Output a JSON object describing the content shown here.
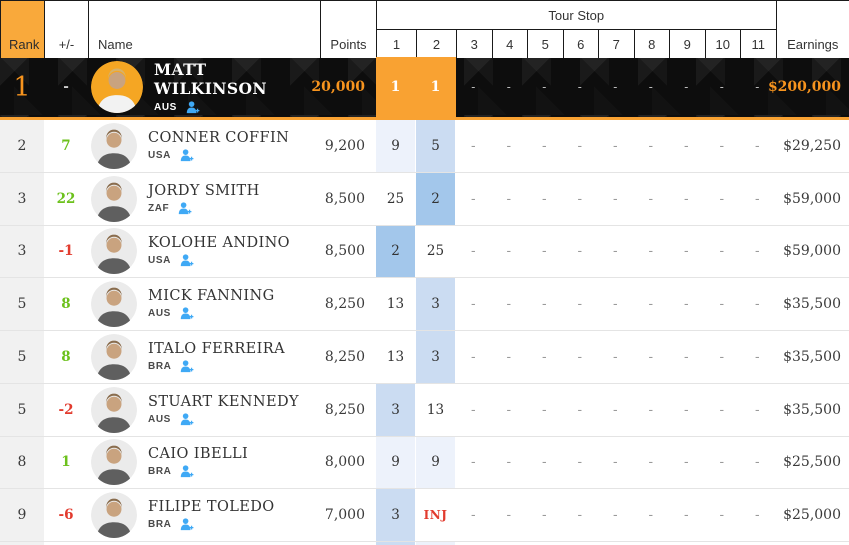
{
  "header": {
    "rank": "Rank",
    "change": "+/-",
    "name": "Name",
    "points": "Points",
    "tour_stop": "Tour Stop",
    "stops": [
      "1",
      "2",
      "3",
      "4",
      "5",
      "6",
      "7",
      "8",
      "9",
      "10",
      "11"
    ],
    "earnings": "Earnings"
  },
  "colors": {
    "accent_orange": "#F9A232",
    "orange_text": "#F7941E",
    "header_rank_bg": "#F9A93B",
    "positive_green": "#6CC11C",
    "negative_red": "#E23B2E",
    "result_shade_strong": "#A3C7EB",
    "result_shade_mid": "#CBDCF2",
    "result_shade_soft": "#EDF2FB",
    "follow_blue": "#3FA9F5",
    "featured_row_bg": "#0d0d0d"
  },
  "shade_map": {
    "1": "gold",
    "2": "strong",
    "3": "mid",
    "5": "mid",
    "9": "soft"
  },
  "rows": [
    {
      "rank": "1",
      "change": "-",
      "change_dir": "neutral",
      "name": "MATT WILKINSON",
      "country": "AUS",
      "points": "20,000",
      "stops": [
        "1",
        "1",
        "-",
        "-",
        "-",
        "-",
        "-",
        "-",
        "-",
        "-",
        "-"
      ],
      "earnings": "$200,000",
      "featured": true
    },
    {
      "rank": "2",
      "change": "7",
      "change_dir": "up",
      "name": "CONNER COFFIN",
      "country": "USA",
      "points": "9,200",
      "stops": [
        "9",
        "5",
        "-",
        "-",
        "-",
        "-",
        "-",
        "-",
        "-",
        "-",
        "-"
      ],
      "earnings": "$29,250",
      "featured": false
    },
    {
      "rank": "3",
      "change": "22",
      "change_dir": "up",
      "name": "JORDY SMITH",
      "country": "ZAF",
      "points": "8,500",
      "stops": [
        "25",
        "2",
        "-",
        "-",
        "-",
        "-",
        "-",
        "-",
        "-",
        "-",
        "-"
      ],
      "earnings": "$59,000",
      "featured": false
    },
    {
      "rank": "3",
      "change": "-1",
      "change_dir": "down",
      "name": "KOLOHE ANDINO",
      "country": "USA",
      "points": "8,500",
      "stops": [
        "2",
        "25",
        "-",
        "-",
        "-",
        "-",
        "-",
        "-",
        "-",
        "-",
        "-"
      ],
      "earnings": "$59,000",
      "featured": false
    },
    {
      "rank": "5",
      "change": "8",
      "change_dir": "up",
      "name": "MICK FANNING",
      "country": "AUS",
      "points": "8,250",
      "stops": [
        "13",
        "3",
        "-",
        "-",
        "-",
        "-",
        "-",
        "-",
        "-",
        "-",
        "-"
      ],
      "earnings": "$35,500",
      "featured": false
    },
    {
      "rank": "5",
      "change": "8",
      "change_dir": "up",
      "name": "ITALO FERREIRA",
      "country": "BRA",
      "points": "8,250",
      "stops": [
        "13",
        "3",
        "-",
        "-",
        "-",
        "-",
        "-",
        "-",
        "-",
        "-",
        "-"
      ],
      "earnings": "$35,500",
      "featured": false
    },
    {
      "rank": "5",
      "change": "-2",
      "change_dir": "down",
      "name": "STUART KENNEDY",
      "country": "AUS",
      "points": "8,250",
      "stops": [
        "3",
        "13",
        "-",
        "-",
        "-",
        "-",
        "-",
        "-",
        "-",
        "-",
        "-"
      ],
      "earnings": "$35,500",
      "featured": false
    },
    {
      "rank": "8",
      "change": "1",
      "change_dir": "up",
      "name": "CAIO IBELLI",
      "country": "BRA",
      "points": "8,000",
      "stops": [
        "9",
        "9",
        "-",
        "-",
        "-",
        "-",
        "-",
        "-",
        "-",
        "-",
        "-"
      ],
      "earnings": "$25,500",
      "featured": false
    },
    {
      "rank": "9",
      "change": "-6",
      "change_dir": "down",
      "name": "FILIPE TOLEDO",
      "country": "BRA",
      "points": "7,000",
      "stops": [
        "3",
        "INJ",
        "-",
        "-",
        "-",
        "-",
        "-",
        "-",
        "-",
        "-",
        "-"
      ],
      "earnings": "$25,000",
      "featured": false
    }
  ]
}
